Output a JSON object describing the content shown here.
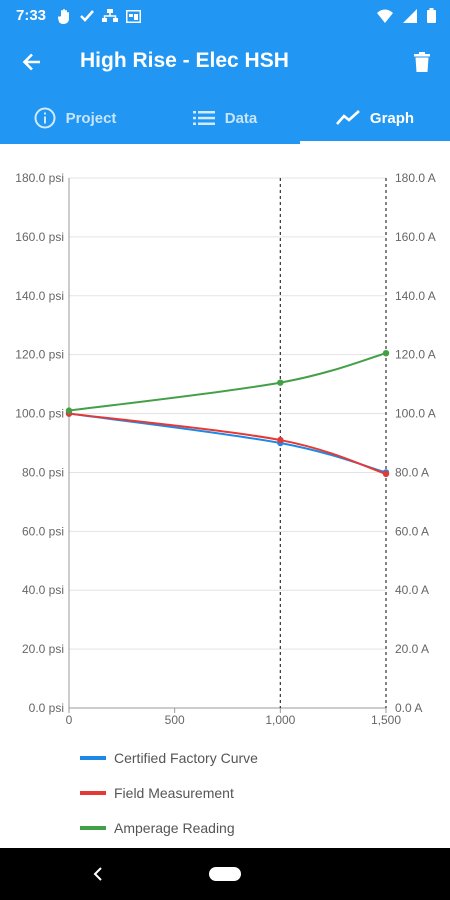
{
  "status_bar": {
    "time": "7:33",
    "left_icons": [
      "hand-icon",
      "check-icon",
      "network-icon",
      "screen-icon"
    ],
    "right_icons": [
      "wifi-icon",
      "signal-icon",
      "battery-icon"
    ]
  },
  "app_bar": {
    "title": "High Rise - Elec HSH",
    "back_icon": "arrow-back-icon",
    "delete_icon": "trash-icon",
    "background": "#2196f3"
  },
  "tabs": [
    {
      "label": "Project",
      "icon": "info-icon",
      "active": false
    },
    {
      "label": "Data",
      "icon": "list-icon",
      "active": false
    },
    {
      "label": "Graph",
      "icon": "trend-icon",
      "active": true
    }
  ],
  "chart_data": {
    "type": "line",
    "x": [
      0,
      1000,
      1500
    ],
    "x_ticks": [
      "0",
      "500",
      "1,000",
      "1,500"
    ],
    "x_tick_values": [
      0,
      500,
      1000,
      1500
    ],
    "xlim": [
      0,
      1500
    ],
    "left_axis": {
      "ticks": [
        "0.0 psi",
        "20.0 psi",
        "40.0 psi",
        "60.0 psi",
        "80.0 psi",
        "100.0 psi",
        "120.0 psi",
        "140.0 psi",
        "160.0 psi",
        "180.0 psi"
      ],
      "ylim": [
        0,
        180
      ]
    },
    "right_axis": {
      "ticks": [
        "0.0 A",
        "20.0 A",
        "40.0 A",
        "60.0 A",
        "80.0 A",
        "100.0 A",
        "120.0 A",
        "140.0 A",
        "160.0 A",
        "180.0 A"
      ],
      "ylim": [
        0,
        180
      ]
    },
    "tick_values": [
      0,
      20,
      40,
      60,
      80,
      100,
      120,
      140,
      160,
      180
    ],
    "series": [
      {
        "name": "Certified Factory Curve",
        "color": "#1e88e5",
        "axis": "left",
        "values": [
          100,
          90,
          80
        ]
      },
      {
        "name": "Field Measurement",
        "color": "#e53935",
        "axis": "left",
        "values": [
          100,
          91,
          79.5
        ]
      },
      {
        "name": "Amperage Reading",
        "color": "#43a047",
        "axis": "right",
        "values": [
          101,
          110.5,
          120.5
        ]
      }
    ],
    "vertical_markers": [
      1000,
      1500
    ],
    "grid": true,
    "legend_position": "bottom"
  },
  "nav_bar": {
    "back_icon": "nav-back-icon",
    "home_icon": "nav-home-pill"
  }
}
